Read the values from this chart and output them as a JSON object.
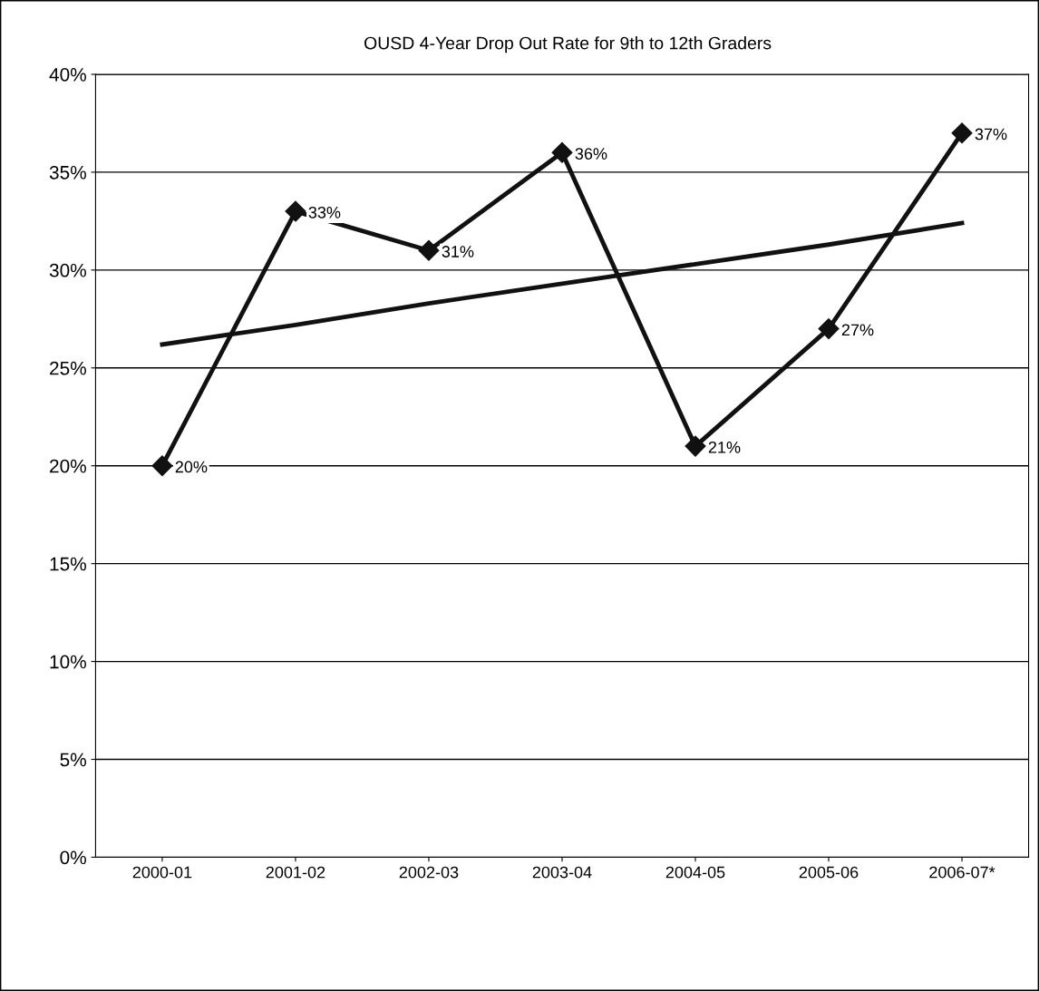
{
  "chart_data": {
    "type": "line",
    "title": "OUSD 4-Year Drop Out Rate for 9th to 12th Graders",
    "categories": [
      "2000-01",
      "2001-02",
      "2002-03",
      "2003-04",
      "2004-05",
      "2005-06",
      "2006-07*"
    ],
    "series": [
      {
        "color": "#111111",
        "values": [
          20,
          33,
          31,
          36,
          21,
          27,
          37
        ],
        "value_labels": [
          "20%",
          "33%",
          "31%",
          "36%",
          "21%",
          "27%",
          "37%"
        ],
        "marker": "diamond",
        "line_style": "solid"
      },
      {
        "type": "line",
        "color": "#111111",
        "values": [
          26.2,
          27.2,
          28.3,
          29.3,
          30.3,
          31.3,
          32.4
        ],
        "marker": "none",
        "line_style": "solid"
      }
    ],
    "ylim": [
      0,
      40
    ],
    "yticks": [
      {
        "value": 0,
        "label": "0%"
      },
      {
        "value": 5,
        "label": "5%"
      },
      {
        "value": 10,
        "label": "10%"
      },
      {
        "value": 15,
        "label": "15%"
      },
      {
        "value": 20,
        "label": "20%"
      },
      {
        "value": 25,
        "label": "25%"
      },
      {
        "value": 30,
        "label": "30%"
      },
      {
        "value": 35,
        "label": "35%"
      },
      {
        "value": 40,
        "label": "40%"
      }
    ],
    "grid": "y",
    "legend": false
  }
}
